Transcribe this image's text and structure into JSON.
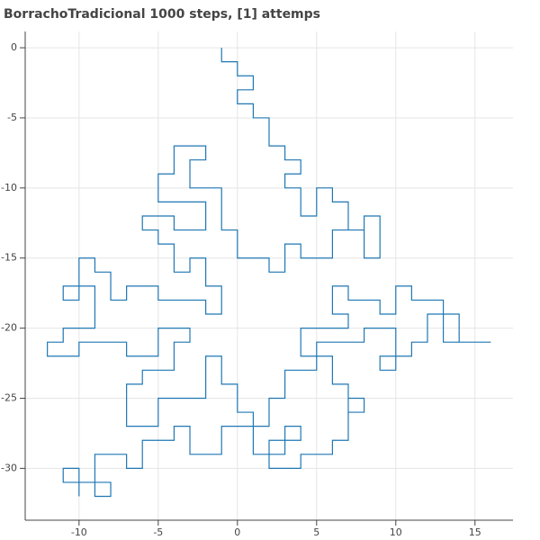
{
  "chart_data": {
    "type": "line",
    "title": "BorrachoTradicional 1000 steps, [1] attemps",
    "color": "#1f77b4",
    "grid": true,
    "xlim": [
      -13.4,
      17.4
    ],
    "ylim": [
      -33.7,
      1.16
    ],
    "xticks": [
      -10,
      -5,
      0,
      5,
      10,
      15
    ],
    "yticks": [
      0,
      -5,
      -10,
      -15,
      -20,
      -25,
      -30
    ],
    "x": [
      -1,
      -1,
      0,
      0,
      1,
      1,
      0,
      0,
      1,
      1,
      2,
      2,
      3,
      3,
      4,
      4,
      3,
      3,
      4,
      4,
      5,
      5,
      6,
      6,
      7,
      7,
      8,
      8,
      9,
      9,
      8,
      8,
      6,
      6,
      4,
      4,
      3,
      3,
      2,
      2,
      0,
      0,
      -1,
      -1,
      -1,
      -3,
      -3,
      -2,
      -2,
      -4,
      -4,
      -5,
      -5,
      -2,
      -2,
      -4,
      -4,
      -6,
      -6,
      -5,
      -5,
      -4,
      -4,
      -3,
      -3,
      -2,
      -2,
      -1,
      -1,
      -2,
      -2,
      -5,
      -5,
      -7,
      -7,
      -8,
      -8,
      -9,
      -9,
      -10,
      -10,
      -11,
      -11,
      -9,
      -9,
      -9,
      -11,
      -11,
      -12,
      -12,
      -10,
      -10,
      -7,
      -7,
      -5,
      -5,
      -3,
      -3,
      -4,
      -4,
      -6,
      -6,
      -7,
      -7,
      -5,
      -5,
      -2,
      -2,
      -1,
      -1,
      0,
      0,
      1,
      1,
      2,
      2,
      3,
      3,
      5,
      5,
      8,
      8,
      10,
      10,
      9,
      9,
      11,
      11,
      12,
      12,
      14,
      14,
      16,
      13,
      13,
      11,
      11,
      10,
      10,
      9,
      9,
      7,
      7,
      6,
      6,
      7,
      7,
      4,
      4,
      6,
      6,
      7,
      7,
      8,
      8,
      7,
      7,
      6,
      6,
      4,
      4,
      2,
      2,
      4,
      4,
      3,
      3,
      1,
      1,
      -1,
      -1,
      -3,
      -3,
      -4,
      -4,
      -6,
      -6,
      -7,
      -7,
      -9,
      -9,
      -8,
      -8,
      -9,
      -9,
      -11,
      -11,
      -10,
      -10
    ],
    "values": [
      0,
      -1,
      -1,
      -2,
      -2,
      -3,
      -3,
      -4,
      -4,
      -5,
      -5,
      -7,
      -7,
      -8,
      -8,
      -9,
      -9,
      -10,
      -10,
      -12,
      -12,
      -10,
      -10,
      -11,
      -11,
      -13,
      -13,
      -12,
      -12,
      -15,
      -15,
      -13,
      -13,
      -15,
      -15,
      -14,
      -14,
      -16,
      -16,
      -15,
      -15,
      -13,
      -13,
      -11,
      -10,
      -10,
      -8,
      -8,
      -7,
      -7,
      -9,
      -9,
      -11,
      -11,
      -13,
      -13,
      -12,
      -12,
      -13,
      -13,
      -14,
      -14,
      -16,
      -16,
      -15,
      -15,
      -17,
      -17,
      -19,
      -19,
      -18,
      -18,
      -17,
      -17,
      -18,
      -18,
      -16,
      -16,
      -15,
      -15,
      -18,
      -18,
      -17,
      -17,
      -19,
      -20,
      -20,
      -21,
      -21,
      -22,
      -22,
      -21,
      -21,
      -22,
      -22,
      -20,
      -20,
      -21,
      -21,
      -23,
      -23,
      -24,
      -24,
      -27,
      -27,
      -25,
      -25,
      -22,
      -22,
      -24,
      -24,
      -26,
      -26,
      -27,
      -27,
      -25,
      -25,
      -23,
      -23,
      -21,
      -21,
      -20,
      -20,
      -23,
      -23,
      -22,
      -22,
      -21,
      -21,
      -19,
      -19,
      -21,
      -21,
      -21,
      -18,
      -18,
      -17,
      -17,
      -19,
      -19,
      -18,
      -18,
      -17,
      -17,
      -19,
      -19,
      -20,
      -20,
      -22,
      -22,
      -24,
      -24,
      -26,
      -26,
      -25,
      -25,
      -28,
      -28,
      -29,
      -29,
      -30,
      -30,
      -28,
      -28,
      -27,
      -27,
      -29,
      -29,
      -27,
      -27,
      -29,
      -29,
      -27,
      -27,
      -28,
      -28,
      -30,
      -30,
      -29,
      -29,
      -31,
      -31,
      -32,
      -32,
      -31,
      -31,
      -30,
      -30,
      -32
    ]
  }
}
